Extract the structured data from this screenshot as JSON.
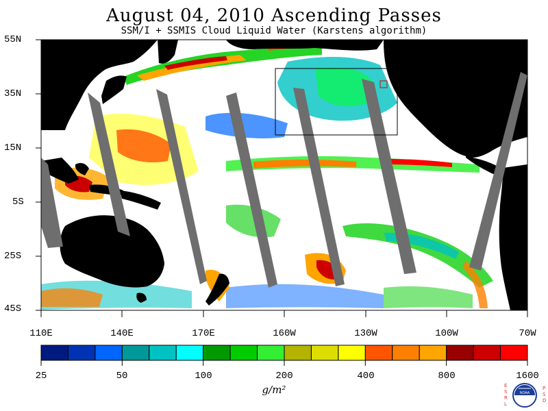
{
  "title": "August 04, 2010  Ascending Passes",
  "subtitle": "SSM/I + SSMIS Cloud Liquid Water (Karstens algorithm)",
  "lat_labels": [
    "55N",
    "35N",
    "15N",
    "5S",
    "25S",
    "45S"
  ],
  "lon_labels": [
    "110E",
    "140E",
    "170E",
    "160W",
    "130W",
    "100W",
    "70W"
  ],
  "colorbar": {
    "tick_labels": [
      "25",
      "50",
      "100",
      "200",
      "400",
      "800",
      "1600"
    ],
    "units": "g/m²",
    "colors": [
      "#001a80",
      "#0033b3",
      "#0066ff",
      "#009999",
      "#00c2c2",
      "#00ffff",
      "#009900",
      "#00cc00",
      "#33ee33",
      "#b3b300",
      "#dddd00",
      "#ffff00",
      "#ff5500",
      "#ff8000",
      "#ffa500",
      "#990000",
      "#cc0000",
      "#ff0000"
    ]
  },
  "logo": {
    "left_letters": [
      "E",
      "S",
      "R",
      "L"
    ],
    "right_letters": [
      "P",
      "S",
      "D"
    ],
    "center": "NOAA"
  }
}
